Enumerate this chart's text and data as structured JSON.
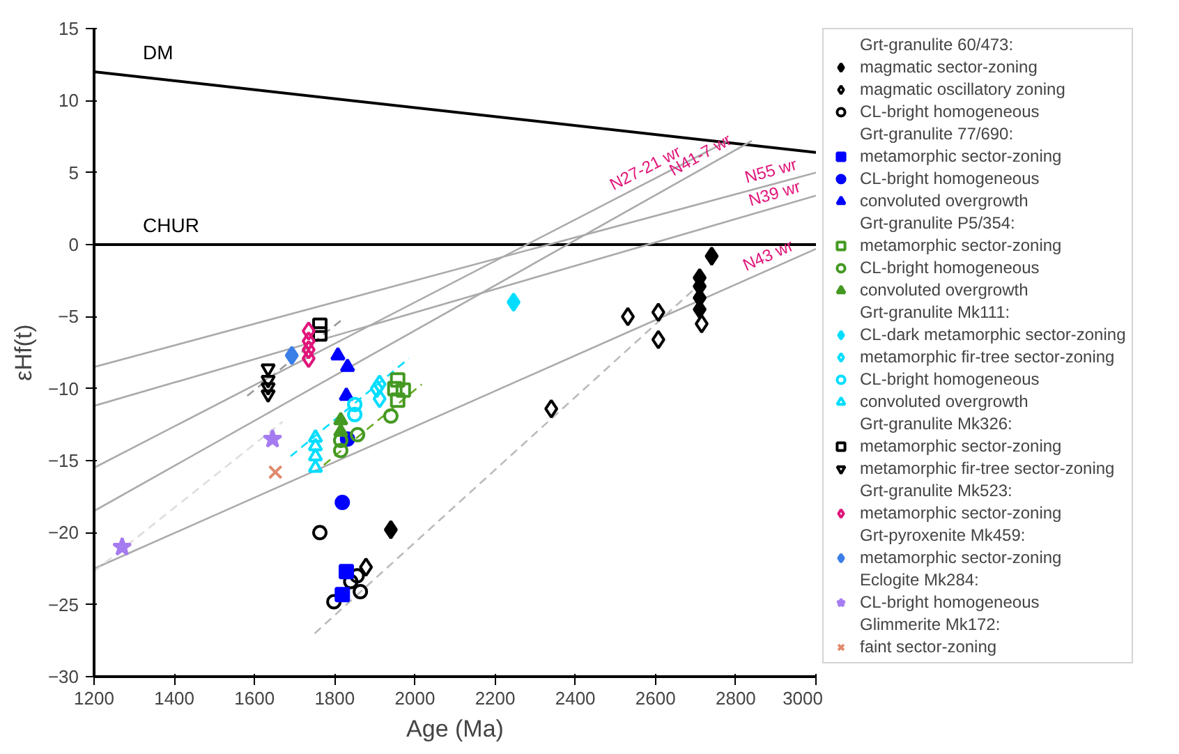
{
  "chart_data": {
    "type": "scatter",
    "xlabel": "Age (Ma)",
    "ylabel": "εHf(t)",
    "xlim": [
      1200,
      3000
    ],
    "ylim": [
      -30,
      15
    ],
    "xticks": [
      1200,
      1400,
      1600,
      1800,
      2000,
      2200,
      2400,
      2600,
      2800,
      3000
    ],
    "yticks": [
      -30,
      -25,
      -20,
      -15,
      -10,
      -5,
      0,
      5,
      10,
      15
    ],
    "grid": false,
    "legend": "right",
    "annotations": [
      "Grt-granulite 60/473:",
      "Grt-granulite 77/690:",
      "Grt-granulite P5/354:",
      "Grt-granulite Mk111:",
      "Grt-granulite Mk326:",
      "Grt-granulite Mk523:",
      "Grt-pyroxenite Mk459:",
      "Eclogite Mk284:",
      "Glimmerite Mk172:",
      {
        "text": "N27-21 wr",
        "x": 2500,
        "y": 3.2
      },
      {
        "text": "N41-7 wr",
        "x": 2650,
        "y": 4.2
      },
      {
        "text": "N55 wr",
        "x": 2830,
        "y": 3.7
      },
      {
        "text": "N39 wr",
        "x": 2840,
        "y": 2.1
      },
      {
        "text": "N43 wr",
        "x": 2830,
        "y": -2.4
      }
    ],
    "series": [
      {
        "type": "line",
        "name": "DM",
        "color": "#000000",
        "line_style": "solid",
        "x": [
          1200,
          3000
        ],
        "values": [
          12.0,
          6.4
        ]
      },
      {
        "type": "line",
        "name": "CHUR",
        "color": "#000000",
        "line_style": "solid",
        "x": [
          1200,
          3000
        ],
        "values": [
          0,
          0
        ]
      },
      {
        "type": "line",
        "color": "#aaaaaa",
        "line_style": "solid",
        "x": [
          1200,
          3000
        ],
        "values": [
          -8.5,
          5.0
        ]
      },
      {
        "type": "line",
        "color": "#aaaaaa",
        "line_style": "solid",
        "x": [
          1200,
          3000
        ],
        "values": [
          -11.2,
          3.4
        ]
      },
      {
        "type": "line",
        "color": "#aaaaaa",
        "line_style": "solid",
        "x": [
          1200,
          2780
        ],
        "values": [
          -15.5,
          7.2
        ]
      },
      {
        "type": "line",
        "color": "#aaaaaa",
        "line_style": "solid",
        "x": [
          1200,
          2840
        ],
        "values": [
          -18.5,
          7.2
        ]
      },
      {
        "type": "line",
        "color": "#aaaaaa",
        "line_style": "solid",
        "x": [
          1200,
          3000
        ],
        "values": [
          -22.5,
          -0.3
        ]
      },
      {
        "type": "line",
        "color": "#bbbbbb",
        "line_style": "dashed",
        "x": [
          1750,
          2720
        ],
        "values": [
          -27.0,
          -2.5
        ]
      },
      {
        "type": "line",
        "color": "#999999",
        "line_style": "dashed",
        "x": [
          1582,
          1819
        ],
        "values": [
          -10.5,
          -5.2
        ]
      },
      {
        "type": "line",
        "color": "#dddddd",
        "line_style": "dashed",
        "x": [
          1200,
          1670
        ],
        "values": [
          -22.7,
          -12.3
        ]
      },
      {
        "type": "line",
        "color": "#00ddff",
        "line_style": "dashed",
        "x": [
          1690,
          1985
        ],
        "values": [
          -14.7,
          -7.9
        ]
      },
      {
        "type": "line",
        "color": "#66aa22",
        "line_style": "dashed",
        "x": [
          1773,
          2017
        ],
        "values": [
          -15.3,
          -9.7
        ]
      },
      {
        "type": "scatter",
        "name": "magmatic sector-zoning",
        "marker": "diamond",
        "color": "#000000",
        "x": [
          2740,
          2710,
          2710,
          2710,
          2710,
          1940
        ],
        "values": [
          -0.8,
          -2.3,
          -2.9,
          -3.7,
          -4.5,
          -19.8
        ]
      },
      {
        "type": "scatter",
        "name": "magmatic oscillatory zoning",
        "marker": "diamond_open",
        "color": "#000000",
        "x": [
          2531,
          2607,
          2607,
          2715,
          2340,
          1878
        ],
        "values": [
          -5.0,
          -4.7,
          -6.6,
          -5.5,
          -11.4,
          -22.4
        ]
      },
      {
        "type": "scatter",
        "name": "CL-bright homogeneous",
        "marker": "circle_open",
        "color": "#000000",
        "x": [
          1840,
          1856,
          1864,
          1798,
          1763
        ],
        "values": [
          -23.4,
          -23.0,
          -24.1,
          -24.8,
          -20.0
        ]
      },
      {
        "type": "scatter",
        "name": "metamorphic sector-zoning",
        "marker": "square",
        "color": "#0000ff",
        "x": [
          1829,
          1819
        ],
        "values": [
          -22.7,
          -24.3
        ]
      },
      {
        "type": "scatter",
        "name": "CL-bright homogeneous",
        "marker": "circle",
        "color": "#0000ff",
        "x": [
          1819,
          1832
        ],
        "values": [
          -17.9,
          -13.5
        ]
      },
      {
        "type": "scatter",
        "name": "convoluted overgrowth",
        "marker": "triangle",
        "color": "#0000ff",
        "x": [
          1808,
          1832,
          1829
        ],
        "values": [
          -7.7,
          -8.5,
          -10.5
        ]
      },
      {
        "type": "scatter",
        "name": "metamorphic sector-zoning",
        "marker": "square_open",
        "color": "#449922",
        "x": [
          1957,
          1950,
          1971,
          1957
        ],
        "values": [
          -9.4,
          -10.0,
          -10.1,
          -10.8
        ]
      },
      {
        "type": "scatter",
        "name": "CL-bright homogeneous",
        "marker": "circle_open",
        "color": "#449922",
        "x": [
          1940,
          1857,
          1815,
          1815
        ],
        "values": [
          -11.9,
          -13.2,
          -13.6,
          -14.3
        ]
      },
      {
        "type": "scatter",
        "name": "convoluted overgrowth",
        "marker": "triangle",
        "color": "#449922",
        "x": [
          1815,
          1815
        ],
        "values": [
          -12.2,
          -13.0
        ]
      },
      {
        "type": "scatter",
        "name": "CL-dark metamorphic sector-zoning",
        "marker": "diamond",
        "color": "#00ddff",
        "x": [
          2246
        ],
        "values": [
          -4.0
        ]
      },
      {
        "type": "scatter",
        "name": "metamorphic fir-tree sector-zoning",
        "marker": "diamond_open",
        "color": "#00ddff",
        "x": [
          1912,
          1912,
          1905
        ],
        "values": [
          -9.7,
          -10.7,
          -10.0
        ]
      },
      {
        "type": "scatter",
        "name": "CL-bright homogeneous",
        "marker": "circle_open",
        "color": "#00ddff",
        "x": [
          1850,
          1850
        ],
        "values": [
          -11.1,
          -11.8
        ]
      },
      {
        "type": "scatter",
        "name": "convoluted overgrowth",
        "marker": "triangle_open",
        "color": "#00ddff",
        "x": [
          1752,
          1752,
          1752,
          1752
        ],
        "values": [
          -13.4,
          -14.0,
          -14.7,
          -15.5
        ]
      },
      {
        "type": "scatter",
        "name": "metamorphic sector-zoning",
        "marker": "square_open",
        "color": "#000000",
        "x": [
          1763,
          1763
        ],
        "values": [
          -5.6,
          -6.2
        ]
      },
      {
        "type": "scatter",
        "name": "metamorphic fir-tree sector-zoning",
        "marker": "triangle_down_open",
        "color": "#000000",
        "x": [
          1634,
          1634,
          1634,
          1634
        ],
        "values": [
          -8.6,
          -9.4,
          -9.9,
          -10.4
        ]
      },
      {
        "type": "scatter",
        "name": "metamorphic sector-zoning",
        "marker": "diamond_open",
        "color": "#e0157a",
        "x": [
          1735,
          1735,
          1735,
          1735
        ],
        "values": [
          -6.0,
          -6.7,
          -7.3,
          -7.9
        ]
      },
      {
        "type": "scatter",
        "name": "metamorphic sector-zoning",
        "marker": "diamond",
        "color": "#3a7ee8",
        "x": [
          1693
        ],
        "values": [
          -7.7
        ]
      },
      {
        "type": "scatter",
        "name": "CL-bright homogeneous",
        "marker": "star",
        "color": "#a57bf0",
        "x": [
          1645,
          1270
        ],
        "values": [
          -13.5,
          -21.0
        ]
      },
      {
        "type": "scatter",
        "name": "faint sector-zoning",
        "marker": "cross",
        "color": "#e08a6e",
        "x": [
          1652
        ],
        "values": [
          -15.8
        ]
      }
    ]
  }
}
